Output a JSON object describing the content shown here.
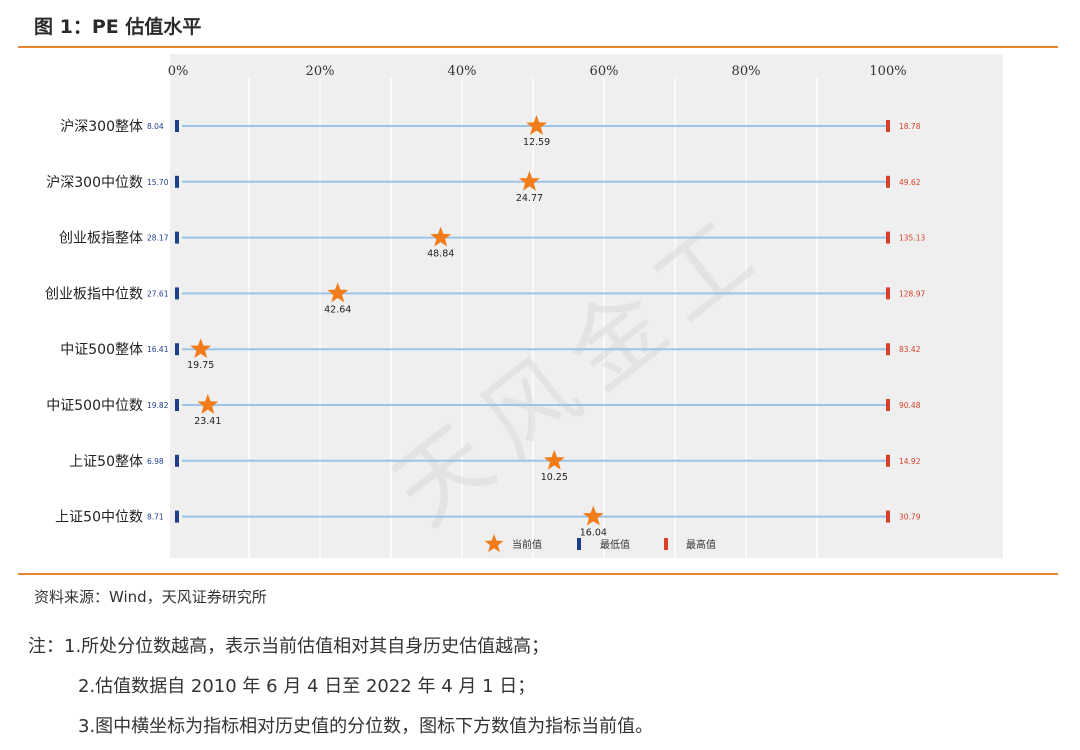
{
  "figure_title": "图 1：PE 估值水平",
  "source": "资料来源：Wind，天风证券研究所",
  "notes": [
    "注：1.所处分位数越高，表示当前估值相对其自身历史估值越高；",
    "2.估值数据自 2010 年 6 月 4 日至 2022 年 4 月 1 日；",
    "3.图中横坐标为指标相对历史值的分位数，图标下方数值为指标当前值。"
  ],
  "watermark": "天风金工",
  "colors": {
    "star": "#f07c1b",
    "min_marker": "#1f3f8a",
    "max_marker": "#d8412a",
    "range_line": "#9dc3e6",
    "plot_bg": "#efefef",
    "accent_rule": "#e8852e"
  },
  "chart_data": {
    "type": "dot-range",
    "x_ticks": [
      "0%",
      "20%",
      "40%",
      "60%",
      "80%",
      "100%"
    ],
    "xlim": [
      0,
      100
    ],
    "legend": [
      "当前值",
      "最低值",
      "最高值"
    ],
    "legend_placement": "bottom-center",
    "grid": "vertical",
    "rows": [
      {
        "name": "沪深300整体",
        "min": "8.04",
        "max": "18.78",
        "current": "12.59",
        "percentile": 50.5
      },
      {
        "name": "沪深300中位数",
        "min": "15.70",
        "max": "49.62",
        "current": "24.77",
        "percentile": 49.5
      },
      {
        "name": "创业板指整体",
        "min": "28.17",
        "max": "135.13",
        "current": "48.84",
        "percentile": 37.0
      },
      {
        "name": "创业板指中位数",
        "min": "27.61",
        "max": "128.97",
        "current": "42.64",
        "percentile": 22.5
      },
      {
        "name": "中证500整体",
        "min": "16.41",
        "max": "83.42",
        "current": "19.75",
        "percentile": 3.2
      },
      {
        "name": "中证500中位数",
        "min": "19.82",
        "max": "90.48",
        "current": "23.41",
        "percentile": 4.2
      },
      {
        "name": "上证50整体",
        "min": "6.98",
        "max": "14.92",
        "current": "10.25",
        "percentile": 53.0
      },
      {
        "name": "上证50中位数",
        "min": "8.71",
        "max": "30.79",
        "current": "16.04",
        "percentile": 58.5
      }
    ]
  }
}
